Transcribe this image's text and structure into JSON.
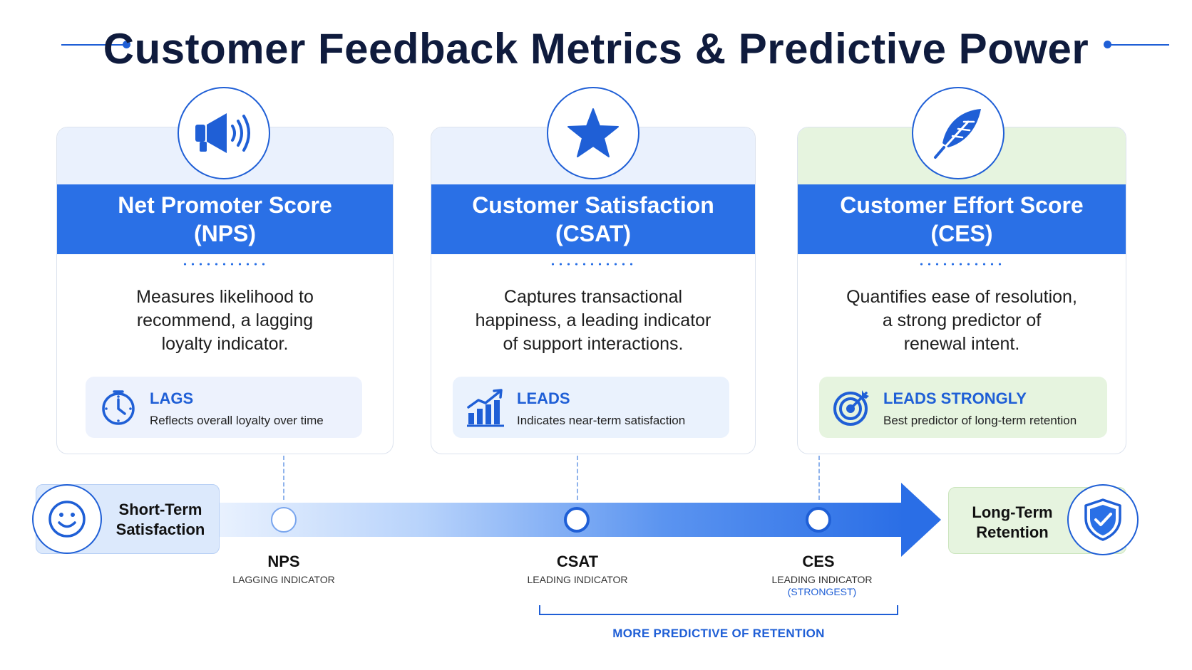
{
  "title": "Customer Feedback Metrics & Predictive Power",
  "colors": {
    "primary": "#2a70e6",
    "dark": "#0f1b3d",
    "card_bg_blue": "#eaf1fd",
    "card_bg_green": "#e6f4df"
  },
  "cards": [
    {
      "icon": "megaphone-icon",
      "title_line1": "Net Promoter Score",
      "title_line2": "(NPS)",
      "desc": [
        "Measures likelihood to",
        "recommend, a lagging",
        "loyalty indicator."
      ],
      "badge_icon": "clock-icon",
      "badge_title": "LAGS",
      "badge_sub": "Reflects overall loyalty over time"
    },
    {
      "icon": "star-icon",
      "title_line1": "Customer Satisfaction",
      "title_line2": "(CSAT)",
      "desc": [
        "Captures transactional",
        "happiness, a leading indicator",
        "of support interactions."
      ],
      "badge_icon": "growth-chart-icon",
      "badge_title": "LEADS",
      "badge_sub": "Indicates near-term satisfaction"
    },
    {
      "icon": "feather-icon",
      "title_line1": "Customer Effort Score",
      "title_line2": "(CES)",
      "desc": [
        "Quantifies ease of resolution,",
        "a strong predictor of",
        "renewal intent."
      ],
      "badge_icon": "target-icon",
      "badge_title": "LEADS STRONGLY",
      "badge_sub": "Best predictor of long-term retention"
    }
  ],
  "timeline": {
    "start_line1": "Short-Term",
    "start_line2": "Satisfaction",
    "end_line1": "Long-Term",
    "end_line2": "Retention",
    "nodes": [
      {
        "label": "NPS",
        "sub": "LAGGING INDICATOR",
        "sub2": ""
      },
      {
        "label": "CSAT",
        "sub": "LEADING INDICATOR",
        "sub2": ""
      },
      {
        "label": "CES",
        "sub": "LEADING INDICATOR",
        "sub2": "(STRONGEST)"
      }
    ],
    "bracket_label": "MORE PREDICTIVE OF RETENTION"
  }
}
